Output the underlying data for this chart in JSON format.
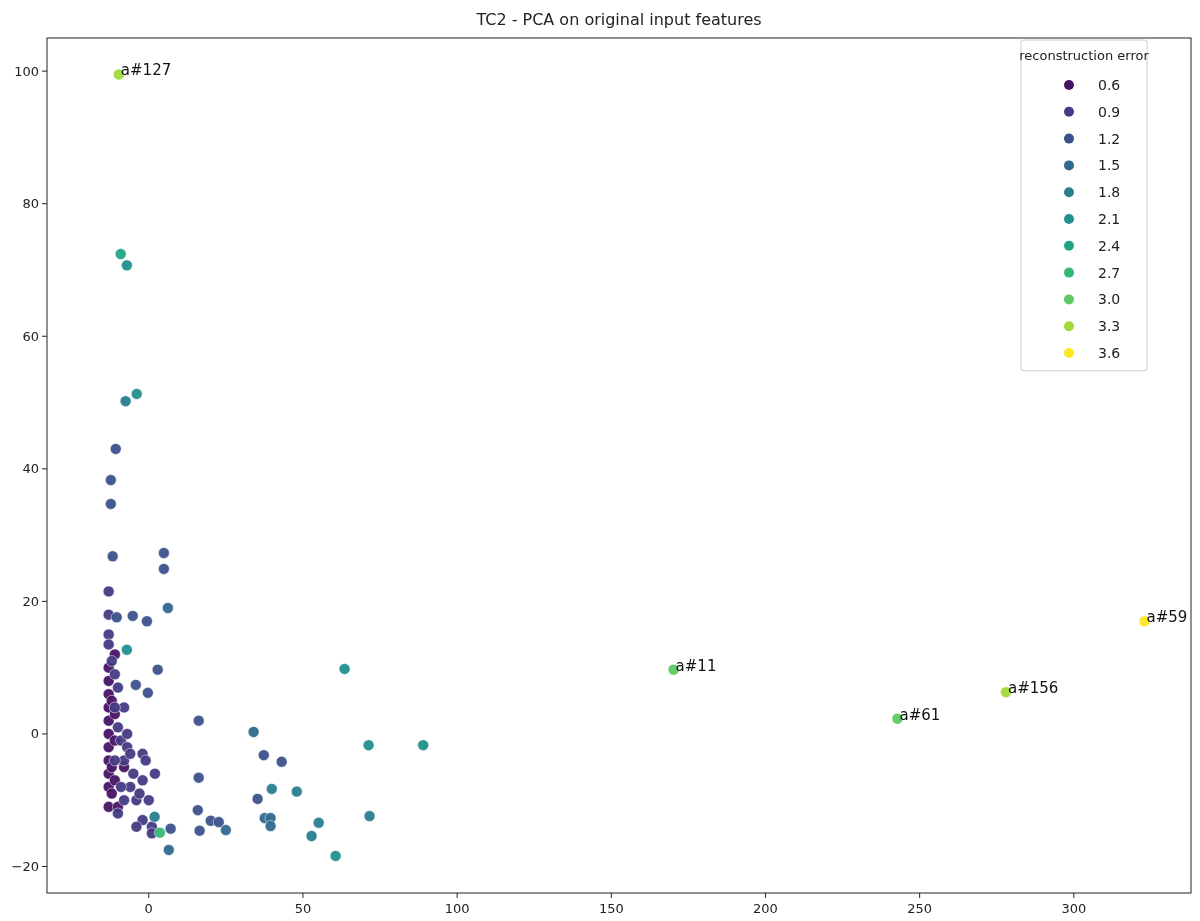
{
  "chart_data": {
    "type": "scatter",
    "title": "TC2 - PCA on original input features",
    "legend_title": "reconstruction error",
    "legend": "top right",
    "marker": "circle",
    "grid": false,
    "xlim": [
      -33,
      338
    ],
    "ylim": [
      -24,
      105
    ],
    "xticks": [
      0,
      50,
      100,
      150,
      200,
      250,
      300
    ],
    "yticks": [
      {
        "value": -20,
        "label": "−20"
      },
      0,
      20,
      40,
      60,
      80,
      100
    ],
    "series": [
      {
        "name": "0.6",
        "color": "#471365",
        "x": [
          -13,
          -13,
          -13,
          -13,
          -13,
          -13,
          -13,
          -13,
          -13,
          -13,
          -13,
          -12,
          -11,
          -12,
          -11,
          -11,
          -10,
          -11,
          -8,
          -12
        ],
        "values": [
          10,
          8,
          6,
          4,
          2,
          0,
          -2,
          -4,
          -6,
          -8,
          -11,
          -9,
          -7,
          5,
          3,
          -1,
          -11,
          12,
          -5,
          -5
        ]
      },
      {
        "name": "0.9",
        "color": "#443a83",
        "x": [
          -13,
          -13,
          -13,
          -13,
          -12,
          -11,
          -10,
          -8,
          -10,
          -9,
          -8,
          -7,
          -6,
          -5,
          -4,
          -3,
          -2,
          -1,
          0,
          1,
          1,
          -2,
          -4,
          -9,
          -10,
          -7,
          -6,
          -2,
          2,
          -11,
          -8,
          -11
        ],
        "values": [
          21.5,
          18,
          15,
          13.5,
          11,
          9,
          7,
          4,
          1,
          -1,
          -4,
          -2,
          -8,
          -6,
          -10,
          -9,
          -3,
          -4,
          -10,
          -14,
          -15,
          -13,
          -14,
          -8,
          -12,
          0,
          -3,
          -7,
          -6,
          4,
          -10,
          -4
        ]
      },
      {
        "name": "1.2",
        "color": "#3b528b",
        "x": [
          -10.7,
          -12.3,
          -12.3,
          -11.7,
          4.9,
          4.9,
          -0.6,
          -5.2,
          -10.4,
          2.9,
          -4.2,
          -0.3,
          16.2,
          16.2,
          15.9,
          16.5,
          20.1,
          22.7,
          37.3,
          43.1,
          35.3,
          7.1
        ],
        "values": [
          43,
          38.3,
          34.7,
          26.8,
          27.3,
          24.9,
          17,
          17.8,
          17.6,
          9.7,
          7.4,
          6.2,
          2,
          -6.6,
          -11.5,
          -14.6,
          -13.1,
          -13.3,
          -3.2,
          -4.2,
          -9.8,
          -14.3
        ]
      },
      {
        "name": "1.5",
        "color": "#31688e",
        "x": [
          6.2,
          25,
          34,
          37.6,
          39.5,
          39.5,
          6.5
        ],
        "values": [
          19,
          -14.5,
          0.3,
          -12.7,
          -12.7,
          -13.9,
          -17.5
        ]
      },
      {
        "name": "1.8",
        "color": "#287d8e",
        "x": [
          -7.5,
          1.9,
          71.6,
          52.8,
          55.1,
          48,
          39.9
        ],
        "values": [
          50.2,
          -12.5,
          -12.4,
          -15.4,
          -13.4,
          -8.7,
          -8.3
        ]
      },
      {
        "name": "2.1",
        "color": "#21918c",
        "x": [
          -7.1,
          -3.9,
          -7.1,
          63.5,
          71.3,
          60.6,
          89
        ],
        "values": [
          70.7,
          51.3,
          12.7,
          9.8,
          -1.7,
          -18.4,
          -1.7
        ]
      },
      {
        "name": "2.4",
        "color": "#20a486",
        "x": [
          -9.1
        ],
        "values": [
          72.4
        ]
      },
      {
        "name": "2.7",
        "color": "#35b779",
        "x": [
          3.6
        ],
        "values": [
          -14.9
        ]
      },
      {
        "name": "3.0",
        "color": "#5ec962",
        "x": [
          170.2,
          242.8
        ],
        "values": [
          9.7,
          2.3
        ]
      },
      {
        "name": "3.3",
        "color": "#a0da39",
        "x": [
          -9.7,
          278
        ],
        "values": [
          99.5,
          6.3
        ]
      },
      {
        "name": "3.6",
        "color": "#fde725",
        "x": [
          322.9
        ],
        "values": [
          17
        ]
      }
    ],
    "annotations": [
      {
        "text": "a#127",
        "x": -9.7,
        "y": 99.5
      },
      {
        "text": "a#11",
        "x": 170.2,
        "y": 9.7
      },
      {
        "text": "a#59",
        "x": 322.9,
        "y": 17
      },
      {
        "text": "a#156",
        "x": 278,
        "y": 6.3
      },
      {
        "text": "a#61",
        "x": 242.8,
        "y": 2.3
      }
    ]
  }
}
